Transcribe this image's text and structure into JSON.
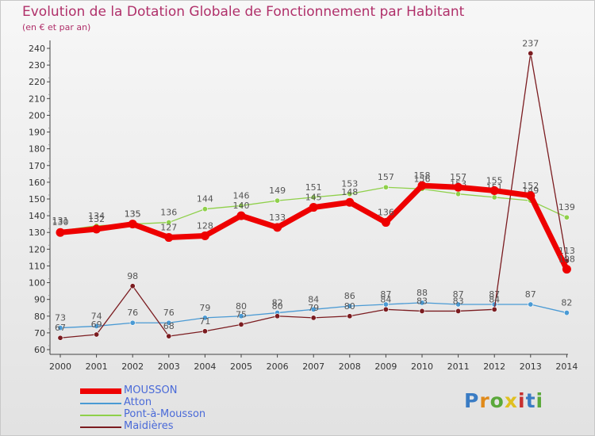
{
  "header": {
    "title": "Evolution de la Dotation Globale de Fonctionnement par Habitant",
    "subtitle": "(en € et par an)"
  },
  "logo": {
    "letters": [
      "P",
      "r",
      "o",
      "x",
      "i",
      "t",
      "i"
    ]
  },
  "chart_data": {
    "type": "line",
    "x": [
      "2000",
      "2001",
      "2002",
      "2003",
      "2004",
      "2005",
      "2006",
      "2007",
      "2008",
      "2009",
      "2010",
      "2011",
      "2012",
      "2013",
      "2014"
    ],
    "ylim": [
      60,
      240
    ],
    "yticks": [
      60,
      70,
      80,
      90,
      100,
      110,
      120,
      130,
      140,
      150,
      160,
      170,
      180,
      190,
      200,
      210,
      220,
      230,
      240
    ],
    "grid": false,
    "legend_position": "bottom-left",
    "series": [
      {
        "name": "Pont-à-Mousson",
        "color": "#8fd04a",
        "values": [
          131,
          134,
          135,
          136,
          144,
          146,
          149,
          151,
          153,
          157,
          156,
          153,
          151,
          149,
          139
        ]
      },
      {
        "name": "Atton",
        "color": "#4a9ad4",
        "values": [
          73,
          74,
          76,
          76,
          79,
          80,
          82,
          84,
          86,
          87,
          88,
          87,
          87,
          87,
          82
        ]
      },
      {
        "name": "Maidières",
        "color": "#7b1c20",
        "values": [
          67,
          69,
          98,
          68,
          71,
          75,
          80,
          79,
          80,
          84,
          83,
          83,
          84,
          237,
          113
        ]
      },
      {
        "name": "MOUSSON",
        "color": "#ee0000",
        "values": [
          130,
          132,
          135,
          127,
          128,
          140,
          133,
          145,
          148,
          136,
          158,
          157,
          155,
          152,
          108
        ]
      }
    ]
  },
  "legend": [
    {
      "label": "MOUSSON",
      "color": "#ee0000"
    },
    {
      "label": "Atton",
      "color": "#4a9ad4"
    },
    {
      "label": "Pont-à-Mousson",
      "color": "#8fd04a"
    },
    {
      "label": "Maidières",
      "color": "#7b1c20"
    }
  ]
}
